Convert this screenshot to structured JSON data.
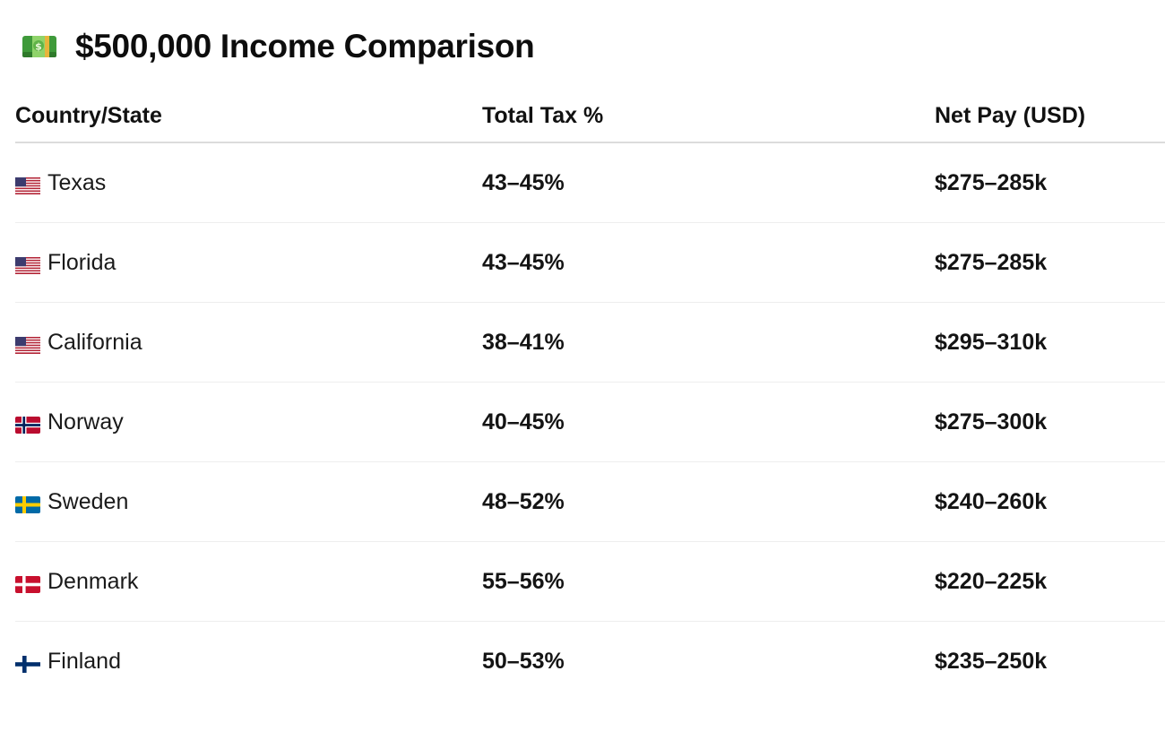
{
  "title": {
    "icon": "money-bill-icon",
    "text": "$500,000 Income Comparison"
  },
  "table": {
    "headers": [
      "Country/State",
      "Total Tax %",
      "Net Pay (USD)"
    ],
    "rows": [
      {
        "flag": "us-flag-icon",
        "name": "Texas",
        "tax": "43–45%",
        "net": "$275–285k"
      },
      {
        "flag": "us-flag-icon",
        "name": "Florida",
        "tax": "43–45%",
        "net": "$275–285k"
      },
      {
        "flag": "us-flag-icon",
        "name": "California",
        "tax": "38–41%",
        "net": "$295–310k"
      },
      {
        "flag": "norway-flag-icon",
        "name": "Norway",
        "tax": "40–45%",
        "net": "$275–300k"
      },
      {
        "flag": "sweden-flag-icon",
        "name": "Sweden",
        "tax": "48–52%",
        "net": "$240–260k"
      },
      {
        "flag": "denmark-flag-icon",
        "name": "Denmark",
        "tax": "55–56%",
        "net": "$220–225k"
      },
      {
        "flag": "finland-flag-icon",
        "name": "Finland",
        "tax": "50–53%",
        "net": "$235–250k"
      }
    ]
  }
}
